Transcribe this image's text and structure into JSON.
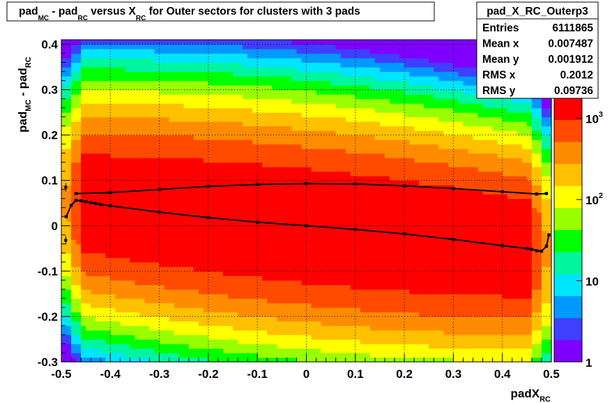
{
  "title": {
    "p1": "pad",
    "s1": "MC",
    "p2": " - pad",
    "s2": "RC",
    "p3": " versus X",
    "s3": "RC",
    "p4": " for Outer sectors for clusters with 3 pads"
  },
  "stats": {
    "name": "pad_X_RC_Outerp3",
    "rows": [
      {
        "label": "Entries",
        "value": "6111865"
      },
      {
        "label": "Mean x",
        "value": "0.007487"
      },
      {
        "label": "Mean y",
        "value": "0.001912"
      },
      {
        "label": "RMS x",
        "value": "0.2012"
      },
      {
        "label": "RMS y",
        "value": "0.09736"
      }
    ]
  },
  "axes": {
    "xlabel_main": "padX",
    "xlabel_sub": "RC",
    "ylabel_main": "pad",
    "ylabel_sub1": "MC",
    "ylabel_mid": " - pad",
    "ylabel_sub2": "RC"
  },
  "palette": {
    "colors": [
      "#7f00ff",
      "#3f3fff",
      "#0099ff",
      "#00e5ff",
      "#00f5a0",
      "#00ff00",
      "#99ff00",
      "#ffff00",
      "#ffc000",
      "#ff8c00",
      "#ff4b00",
      "#ff0000"
    ],
    "ticks": [
      {
        "label": "1",
        "exp": "",
        "value": 1
      },
      {
        "label": "10",
        "exp": "",
        "value": 10
      },
      {
        "label": "10",
        "exp": "2",
        "value": 100
      },
      {
        "label": "10",
        "exp": "3",
        "value": 1000
      }
    ]
  },
  "chart_data": {
    "type": "heatmap",
    "title": "pad_MC - pad_RC versus X_RC for Outer sectors for clusters with 3 pads",
    "xlabel": "padX_RC",
    "ylabel": "pad_MC - pad_RC",
    "xlim": [
      -0.5,
      0.5
    ],
    "ylim": [
      -0.3,
      0.41
    ],
    "z_scale": "log",
    "zlim": [
      1,
      1800
    ],
    "x_ticks": [
      -0.5,
      -0.4,
      -0.3,
      -0.2,
      -0.1,
      0,
      0.1,
      0.2,
      0.3,
      0.4,
      0.5
    ],
    "x_tick_labels": [
      "-0.5",
      "-0.4",
      "-0.3",
      "-0.2",
      "-0.1",
      "0",
      "0.1",
      "0.2",
      "0.3",
      "0.4",
      "0.5"
    ],
    "y_ticks": [
      -0.3,
      -0.2,
      -0.1,
      0,
      0.1,
      0.2,
      0.3,
      0.4
    ],
    "y_tick_labels": [
      "-0.3",
      "-0.2",
      "-0.1",
      "0",
      "0.1",
      "0.2",
      "0.3",
      "0.4"
    ],
    "grid": true,
    "legend": "none",
    "series": [
      {
        "kind": "mean-profile",
        "x": [
          -0.49,
          -0.48,
          -0.47,
          -0.46,
          -0.45,
          -0.44,
          -0.43,
          -0.42,
          -0.4,
          -0.3,
          -0.2,
          -0.1,
          0,
          0.1,
          0.2,
          0.3,
          0.4,
          0.45,
          0.46,
          0.47,
          0.48,
          0.49,
          0.495
        ],
        "y": [
          0.02,
          0.045,
          0.056,
          0.055,
          0.053,
          0.051,
          0.049,
          0.047,
          0.044,
          0.03,
          0.018,
          0.008,
          0.0,
          -0.008,
          -0.018,
          -0.03,
          -0.044,
          -0.05,
          -0.052,
          -0.055,
          -0.056,
          -0.045,
          -0.02
        ]
      },
      {
        "kind": "rms-profile",
        "x": [
          -0.47,
          -0.4,
          -0.3,
          -0.2,
          -0.1,
          0,
          0.1,
          0.2,
          0.3,
          0.4,
          0.47,
          0.49
        ],
        "y": [
          0.071,
          0.073,
          0.08,
          0.087,
          0.091,
          0.093,
          0.092,
          0.088,
          0.082,
          0.075,
          0.07,
          0.071
        ]
      },
      {
        "kind": "edge-points",
        "x": [
          -0.491,
          -0.491
        ],
        "y": [
          0.085,
          -0.032
        ]
      }
    ]
  }
}
